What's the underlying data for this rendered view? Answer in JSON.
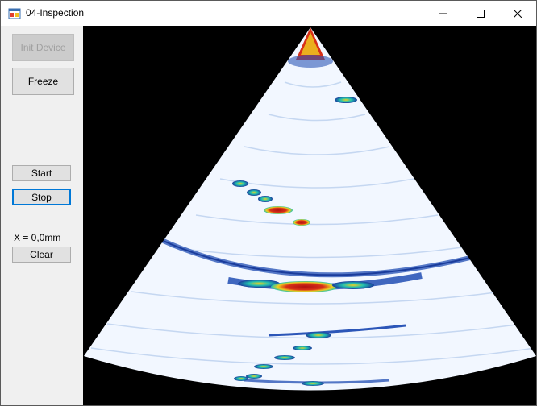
{
  "window": {
    "title": "04-Inspection"
  },
  "controls": {
    "init_device_label": "Init Device",
    "freeze_label": "Freeze",
    "start_label": "Start",
    "stop_label": "Stop",
    "position_readout": "X = 0,0mm",
    "clear_label": "Clear"
  },
  "icons": {
    "app": "app-window-icon",
    "minimize": "minimize-icon",
    "maximize": "maximize-icon",
    "close": "close-icon"
  },
  "colors": {
    "scan_background": "#000000",
    "fan_base": "#f2f7ff",
    "echo_weak": "#2c56b8",
    "echo_mid": "#20c0b0",
    "echo_strong": "#f0d020",
    "echo_peak": "#b01010",
    "focus_border": "#0078d7"
  }
}
